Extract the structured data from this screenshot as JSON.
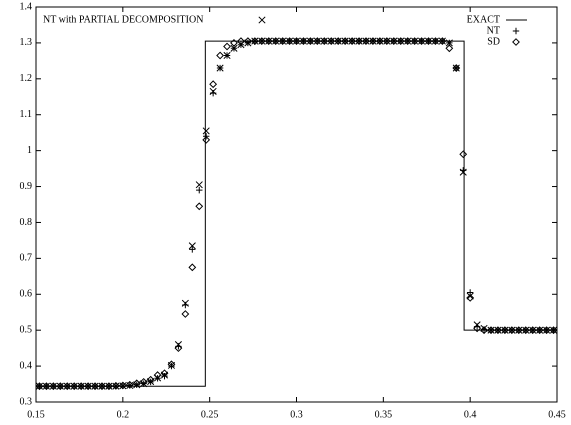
{
  "chart_data": {
    "type": "scatter",
    "xlim": [
      0.15,
      0.45
    ],
    "xticks": [
      0.15,
      0.2,
      0.25,
      0.3,
      0.35,
      0.4,
      0.45
    ],
    "ylim": [
      0.3,
      1.4
    ],
    "yticks": [
      0.3,
      0.4,
      0.5,
      0.6,
      0.7,
      0.8,
      0.9,
      1,
      1.1,
      1.2,
      1.3,
      1.4
    ],
    "grid": false,
    "x": [
      0.152,
      0.156,
      0.16,
      0.164,
      0.168,
      0.172,
      0.176,
      0.18,
      0.184,
      0.188,
      0.192,
      0.196,
      0.2,
      0.204,
      0.208,
      0.212,
      0.216,
      0.22,
      0.224,
      0.228,
      0.232,
      0.236,
      0.24,
      0.244,
      0.248,
      0.252,
      0.256,
      0.26,
      0.264,
      0.268,
      0.272,
      0.276,
      0.28,
      0.284,
      0.288,
      0.292,
      0.296,
      0.3,
      0.304,
      0.308,
      0.312,
      0.316,
      0.32,
      0.324,
      0.328,
      0.332,
      0.336,
      0.34,
      0.344,
      0.348,
      0.352,
      0.356,
      0.36,
      0.364,
      0.368,
      0.372,
      0.376,
      0.38,
      0.384,
      0.388,
      0.392,
      0.396,
      0.4,
      0.404,
      0.408,
      0.412,
      0.416,
      0.42,
      0.424,
      0.428,
      0.432,
      0.436,
      0.44,
      0.444,
      0.448
    ],
    "series": [
      {
        "name": "EXACT",
        "marker": "line",
        "color": "#000000",
        "legend": "top-right",
        "x": [
          0.15,
          0.2475,
          0.2475,
          0.3965,
          0.3965,
          0.45
        ],
        "values": [
          0.344,
          0.344,
          1.305,
          1.305,
          0.5,
          0.5
        ]
      },
      {
        "name": "NT",
        "marker": "plus",
        "color": "#000000",
        "legend": "top-right",
        "values": [
          0.344,
          0.344,
          0.344,
          0.344,
          0.344,
          0.344,
          0.344,
          0.344,
          0.344,
          0.344,
          0.344,
          0.344,
          0.345,
          0.346,
          0.348,
          0.351,
          0.356,
          0.366,
          0.372,
          0.4,
          0.455,
          0.57,
          0.725,
          0.89,
          1.04,
          1.16,
          1.23,
          1.265,
          1.285,
          1.295,
          1.3,
          1.303,
          1.305,
          1.305,
          1.305,
          1.305,
          1.305,
          1.305,
          1.305,
          1.305,
          1.305,
          1.305,
          1.305,
          1.305,
          1.305,
          1.305,
          1.305,
          1.305,
          1.305,
          1.305,
          1.305,
          1.305,
          1.305,
          1.305,
          1.305,
          1.305,
          1.305,
          1.305,
          1.305,
          1.3,
          1.23,
          0.945,
          0.605,
          0.51,
          0.502,
          0.5,
          0.5,
          0.5,
          0.5,
          0.5,
          0.5,
          0.5,
          0.5,
          0.5,
          0.5
        ]
      },
      {
        "name": "SD",
        "marker": "diamond",
        "color": "#000000",
        "legend": "top-right",
        "values": [
          0.344,
          0.344,
          0.344,
          0.344,
          0.344,
          0.344,
          0.344,
          0.344,
          0.344,
          0.344,
          0.344,
          0.345,
          0.346,
          0.348,
          0.352,
          0.356,
          0.362,
          0.375,
          0.38,
          0.405,
          0.45,
          0.545,
          0.675,
          0.845,
          1.03,
          1.185,
          1.265,
          1.29,
          1.3,
          1.305,
          1.305,
          1.305,
          1.305,
          1.305,
          1.305,
          1.305,
          1.305,
          1.305,
          1.305,
          1.305,
          1.305,
          1.305,
          1.305,
          1.305,
          1.305,
          1.305,
          1.305,
          1.305,
          1.305,
          1.305,
          1.305,
          1.305,
          1.305,
          1.305,
          1.305,
          1.305,
          1.305,
          1.305,
          1.305,
          1.285,
          1.23,
          0.99,
          0.59,
          0.505,
          0.5,
          0.5,
          0.5,
          0.5,
          0.5,
          0.5,
          0.5,
          0.5,
          0.5,
          0.5,
          0.5
        ]
      },
      {
        "name": "NT with PARTIAL DECOMPOSITION",
        "marker": "cross",
        "color": "#000000",
        "legend": "top-left",
        "values": [
          0.344,
          0.344,
          0.344,
          0.344,
          0.344,
          0.344,
          0.344,
          0.344,
          0.344,
          0.344,
          0.344,
          0.344,
          0.345,
          0.346,
          0.348,
          0.351,
          0.357,
          0.367,
          0.375,
          0.402,
          0.46,
          0.575,
          0.735,
          0.905,
          1.055,
          1.165,
          1.23,
          1.265,
          1.285,
          1.295,
          1.3,
          1.305,
          1.305,
          1.305,
          1.305,
          1.305,
          1.305,
          1.305,
          1.305,
          1.305,
          1.305,
          1.305,
          1.305,
          1.305,
          1.305,
          1.305,
          1.305,
          1.305,
          1.305,
          1.305,
          1.305,
          1.305,
          1.305,
          1.305,
          1.305,
          1.305,
          1.305,
          1.305,
          1.305,
          1.3,
          1.23,
          0.94,
          0.595,
          0.515,
          0.505,
          0.5,
          0.5,
          0.5,
          0.5,
          0.5,
          0.5,
          0.5,
          0.5,
          0.5,
          0.5
        ]
      }
    ]
  }
}
